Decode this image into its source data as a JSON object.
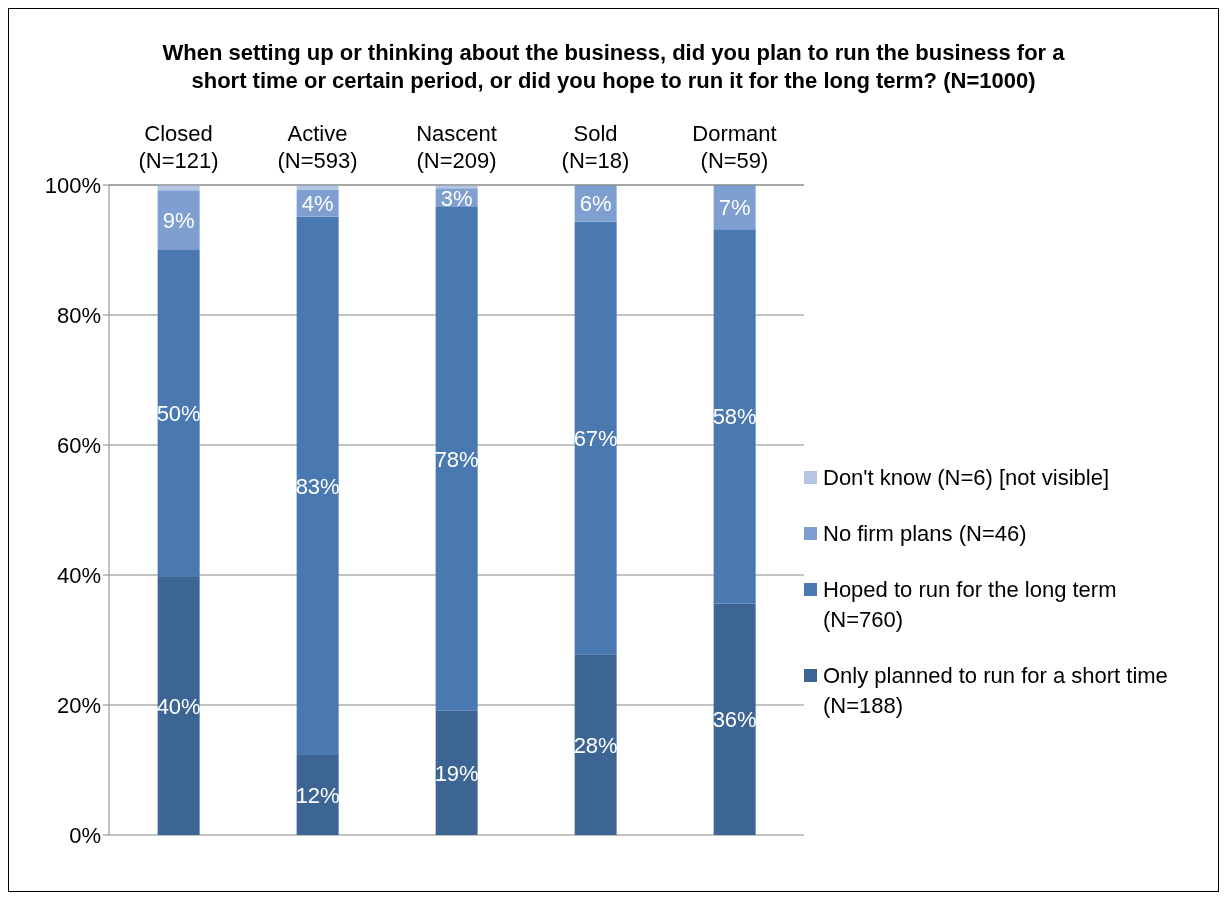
{
  "chart_data": {
    "type": "bar",
    "stacked": true,
    "title": "When setting up or thinking about the business, did you plan to run the business for a short time or certain period, or did you hope to run it for the long term? (N=1000)",
    "categories": [
      "Closed (N=121)",
      "Active (N=593)",
      "Nascent (N=209)",
      "Sold (N=18)",
      "Dormant (N=59)"
    ],
    "series": [
      {
        "name": "Only planned to run for a short time (N=188)",
        "color": "#3d6594",
        "values": [
          39.7,
          12.3,
          19.1,
          27.8,
          35.6
        ],
        "value_labels": [
          "40%",
          "12%",
          "19%",
          "28%",
          "36%"
        ]
      },
      {
        "name": "Hoped to run for the long term (N=760)",
        "color": "#4a78b0",
        "values": [
          50.4,
          82.8,
          77.5,
          66.6,
          57.6
        ],
        "value_labels": [
          "50%",
          "83%",
          "78%",
          "67%",
          "58%"
        ]
      },
      {
        "name": "No firm plans (N=46)",
        "color": "#7e9fcf",
        "values": [
          9.1,
          4.2,
          2.9,
          5.6,
          6.8
        ],
        "value_labels": [
          "9%",
          "4%",
          "3%",
          "6%",
          "7%"
        ]
      },
      {
        "name": "Don't know (N=6) [not visible]",
        "color": "#b4c6e3",
        "values": [
          0.8,
          0.7,
          0.5,
          0,
          0
        ]
      }
    ],
    "ylim": [
      0,
      100
    ],
    "yticks": [
      {
        "value": 0,
        "label": "0%"
      },
      {
        "value": 20,
        "label": "20%"
      },
      {
        "value": 40,
        "label": "40%"
      },
      {
        "value": 60,
        "label": "60%"
      },
      {
        "value": 80,
        "label": "80%"
      },
      {
        "value": 100,
        "label": "100%"
      }
    ],
    "grid": "y",
    "legend": "right"
  }
}
